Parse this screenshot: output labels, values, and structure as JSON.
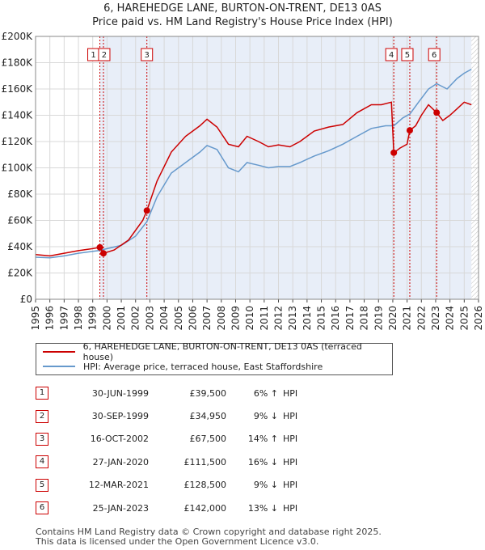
{
  "title_line1": "6, HAREHEDGE LANE, BURTON-ON-TRENT, DE13 0AS",
  "title_line2": "Price paid vs. HM Land Registry's House Price Index (HPI)",
  "colors": {
    "property": "#cc0000",
    "hpi": "#6699cc",
    "shade": "#e8eef8",
    "grid": "#d8d8d8"
  },
  "chart_data": {
    "type": "line",
    "ylim": [
      0,
      200000
    ],
    "xlim": [
      1995.0,
      2026.0
    ],
    "y_ticks": [
      0,
      20000,
      40000,
      60000,
      80000,
      100000,
      120000,
      140000,
      160000,
      180000,
      200000
    ],
    "y_tick_labels": [
      "£0",
      "£20K",
      "£40K",
      "£60K",
      "£80K",
      "£100K",
      "£120K",
      "£140K",
      "£160K",
      "£180K",
      "£200K"
    ],
    "x_ticks": [
      1995,
      1996,
      1997,
      1998,
      1999,
      2000,
      2001,
      2002,
      2003,
      2004,
      2005,
      2006,
      2007,
      2008,
      2009,
      2010,
      2011,
      2012,
      2013,
      2014,
      2015,
      2016,
      2017,
      2018,
      2019,
      2020,
      2021,
      2022,
      2023,
      2024,
      2025,
      2026
    ],
    "shaded_from": 1999.5,
    "data_ends": 2025.5,
    "series": [
      {
        "name": "6, HAREHEDGE LANE, BURTON-ON-TRENT, DE13 0AS (terraced house)",
        "x": [
          1995.0,
          1996.0,
          1997.0,
          1998.0,
          1999.0,
          1999.5,
          1999.75,
          2000.5,
          2001.5,
          2002.5,
          2002.79,
          2003.5,
          2004.5,
          2005.5,
          2006.5,
          2007.0,
          2007.7,
          2008.5,
          2009.2,
          2009.8,
          2010.6,
          2011.3,
          2012.0,
          2012.8,
          2013.5,
          2014.5,
          2015.5,
          2016.5,
          2017.5,
          2018.5,
          2019.2,
          2019.9,
          2020.07,
          2020.5,
          2021.0,
          2021.19,
          2021.6,
          2022.0,
          2022.5,
          2023.07,
          2023.5,
          2024.0,
          2024.5,
          2025.0,
          2025.5
        ],
        "y": [
          34000,
          33000,
          35000,
          37000,
          38500,
          39500,
          34950,
          37500,
          45000,
          60000,
          67500,
          90000,
          112000,
          124000,
          132000,
          137000,
          131000,
          118000,
          116000,
          124000,
          120000,
          116000,
          117500,
          116000,
          120000,
          128000,
          131000,
          133000,
          142000,
          148000,
          148000,
          150000,
          111500,
          115000,
          118000,
          128500,
          132000,
          140000,
          148000,
          142000,
          136000,
          140000,
          145000,
          150000,
          148000
        ]
      },
      {
        "name": "HPI: Average price, terraced house, East Staffordshire",
        "x": [
          1995.0,
          1996.0,
          1997.0,
          1998.0,
          1999.0,
          1999.5,
          2000.0,
          2001.0,
          2002.0,
          2002.79,
          2003.5,
          2004.5,
          2005.5,
          2006.5,
          2007.0,
          2007.7,
          2008.5,
          2009.2,
          2009.8,
          2010.6,
          2011.3,
          2012.0,
          2012.8,
          2013.5,
          2014.5,
          2015.5,
          2016.5,
          2017.5,
          2018.5,
          2019.5,
          2020.07,
          2020.7,
          2021.2,
          2021.8,
          2022.5,
          2023.07,
          2023.8,
          2024.5,
          2025.0,
          2025.5
        ],
        "y": [
          32000,
          31500,
          33000,
          35000,
          36500,
          37200,
          38500,
          41000,
          48000,
          59000,
          78000,
          96000,
          104000,
          112000,
          117000,
          114000,
          100000,
          97000,
          104000,
          102000,
          100000,
          101000,
          101000,
          104000,
          109000,
          113000,
          118000,
          124000,
          130000,
          132000,
          132000,
          138000,
          141000,
          150000,
          160000,
          164000,
          160000,
          168000,
          172000,
          175000
        ]
      }
    ],
    "markers": [
      {
        "label": "1",
        "x": 1999.5,
        "y": 39500
      },
      {
        "label": "2",
        "x": 1999.75,
        "y": 34950
      },
      {
        "label": "3",
        "x": 2002.79,
        "y": 67500
      },
      {
        "label": "4",
        "x": 2020.07,
        "y": 111500
      },
      {
        "label": "5",
        "x": 2021.19,
        "y": 128500
      },
      {
        "label": "6",
        "x": 2023.07,
        "y": 142000
      }
    ]
  },
  "legend": {
    "property_label": "6, HAREHEDGE LANE, BURTON-ON-TRENT, DE13 0AS (terraced house)",
    "hpi_label": "HPI: Average price, terraced house, East Staffordshire"
  },
  "sales": [
    {
      "num": "1",
      "date": "30-JUN-1999",
      "price": "£39,500",
      "pct": "6%",
      "arrow": "↑",
      "hpi": "HPI"
    },
    {
      "num": "2",
      "date": "30-SEP-1999",
      "price": "£34,950",
      "pct": "9%",
      "arrow": "↓",
      "hpi": "HPI"
    },
    {
      "num": "3",
      "date": "16-OCT-2002",
      "price": "£67,500",
      "pct": "14%",
      "arrow": "↑",
      "hpi": "HPI"
    },
    {
      "num": "4",
      "date": "27-JAN-2020",
      "price": "£111,500",
      "pct": "16%",
      "arrow": "↓",
      "hpi": "HPI"
    },
    {
      "num": "5",
      "date": "12-MAR-2021",
      "price": "£128,500",
      "pct": "9%",
      "arrow": "↓",
      "hpi": "HPI"
    },
    {
      "num": "6",
      "date": "25-JAN-2023",
      "price": "£142,000",
      "pct": "13%",
      "arrow": "↓",
      "hpi": "HPI"
    }
  ],
  "footer": {
    "line1": "Contains HM Land Registry data © Crown copyright and database right 2025.",
    "line2": "This data is licensed under the Open Government Licence v3.0."
  }
}
